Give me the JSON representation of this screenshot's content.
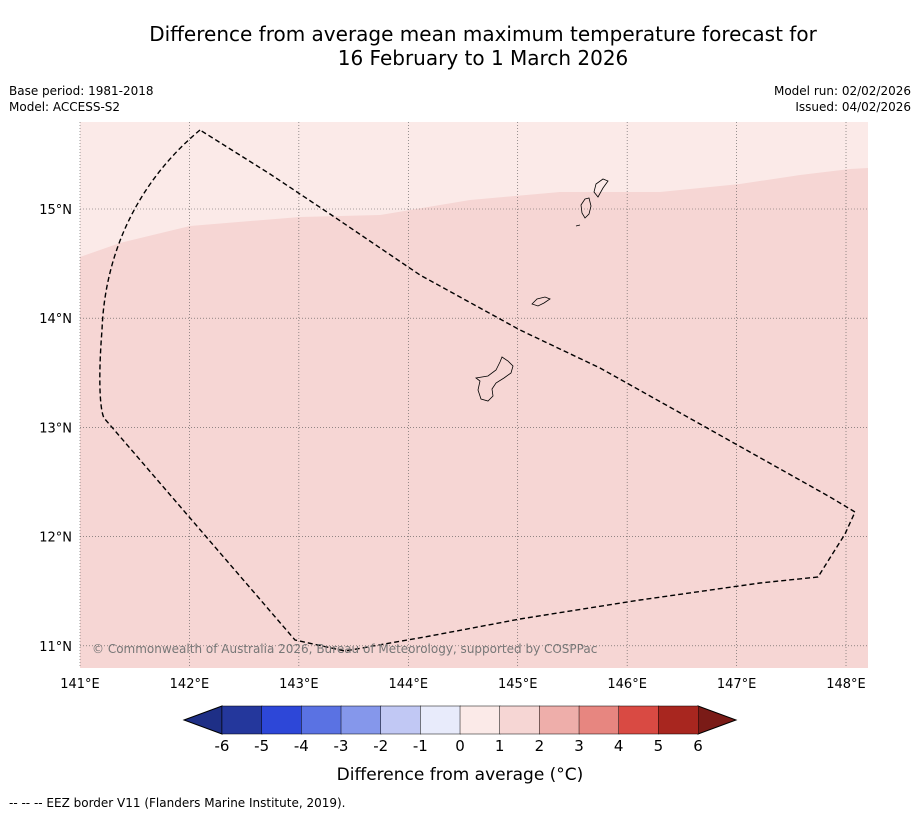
{
  "title_line1": "Difference from average mean maximum temperature forecast for",
  "title_line2": "16 February to 1 March 2026",
  "base_period": "Base period: 1981-2018",
  "model": "Model: ACCESS-S2",
  "model_run": "Model run: 02/02/2026",
  "issued": "Issued: 04/02/2026",
  "copyright": "© Commonwealth of Australia 2026, Bureau of Meteorology, supported by COSPPac",
  "footnote": "--  --  -- EEZ border V11 (Flanders Marine Institute, 2019).",
  "map": {
    "lon_range": [
      141,
      148.2
    ],
    "lat_range": [
      10.8,
      15.8
    ],
    "lon_ticks": [
      "141°E",
      "142°E",
      "143°E",
      "144°E",
      "145°E",
      "146°E",
      "147°E",
      "148°E"
    ],
    "lat_ticks": [
      "15°N",
      "14°N",
      "13°N",
      "12°N",
      "11°N"
    ],
    "shading_colors": {
      "band_0_to_1": "#fbeae8",
      "band_1_to_2": "#f6d6d4"
    }
  },
  "colorbar": {
    "title": "Difference from average (°C)",
    "tick_labels": [
      "-6",
      "-5",
      "-4",
      "-3",
      "-2",
      "-1",
      "0",
      "1",
      "2",
      "3",
      "4",
      "5",
      "6"
    ],
    "colors": [
      "#24379c",
      "#2d47d8",
      "#5a72e3",
      "#8597eb",
      "#c1c8f4",
      "#e8ebfb",
      "#fbeae8",
      "#f6d6d4",
      "#eeaeaa",
      "#e78680",
      "#d94a43",
      "#a8261f"
    ],
    "extend_low": "#1e2f86",
    "extend_high": "#7a1b17"
  }
}
